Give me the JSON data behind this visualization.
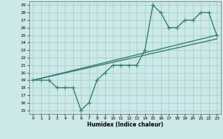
{
  "xlabel": "Humidex (Indice chaleur)",
  "xlim": [
    -0.5,
    23.5
  ],
  "ylim": [
    14.5,
    29.5
  ],
  "xticks": [
    0,
    1,
    2,
    3,
    4,
    5,
    6,
    7,
    8,
    9,
    10,
    11,
    12,
    13,
    14,
    15,
    16,
    17,
    18,
    19,
    20,
    21,
    22,
    23
  ],
  "yticks": [
    15,
    16,
    17,
    18,
    19,
    20,
    21,
    22,
    23,
    24,
    25,
    26,
    27,
    28,
    29
  ],
  "bg_color": "#cce8e8",
  "grid_color": "#9ec8c8",
  "line_color": "#2e7d6e",
  "curve_x": [
    0,
    1,
    2,
    3,
    4,
    5,
    6,
    7,
    8,
    9,
    10,
    11,
    12,
    13,
    14,
    15,
    16,
    17,
    18,
    19,
    20,
    21,
    22,
    23
  ],
  "curve_y": [
    19,
    19,
    19,
    18,
    18,
    18,
    15,
    16,
    19,
    20,
    21,
    21,
    21,
    21,
    23,
    29,
    28,
    26,
    26,
    27,
    27,
    28,
    28,
    25
  ],
  "line1_x": [
    0,
    23
  ],
  "line1_y": [
    19,
    25
  ],
  "line2_x": [
    0,
    23
  ],
  "line2_y": [
    19,
    24.5
  ],
  "line3_x": [
    0,
    23
  ],
  "line3_y": [
    19.5,
    24.5
  ],
  "line_width": 1.0
}
